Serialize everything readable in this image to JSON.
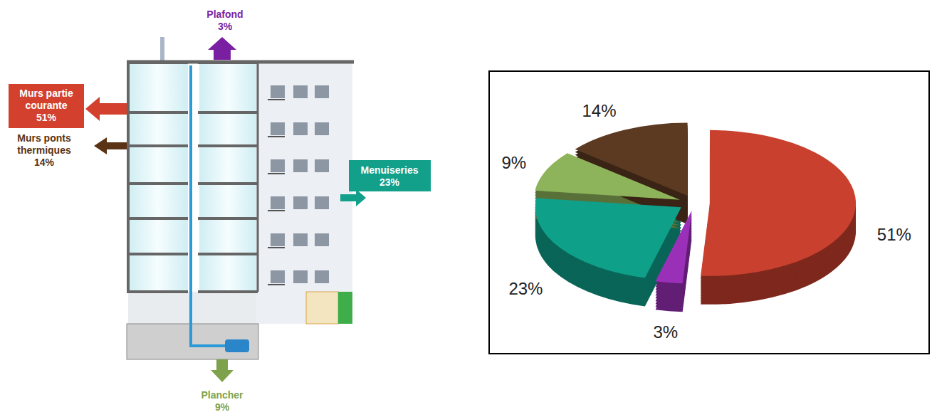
{
  "chart_data": {
    "type": "pie",
    "values": [
      51,
      3,
      23,
      9,
      14
    ],
    "value_labels": [
      "51%",
      "3%",
      "23%",
      "9%",
      "14%"
    ],
    "colors": [
      "#c9402e",
      "#9b30b8",
      "#0fa08a",
      "#8db45a",
      "#5c3a22"
    ],
    "data_labels": true
  },
  "diagram": {
    "labels": [
      {
        "lines": [
          "Plafond",
          "3%"
        ],
        "color": "#7b1fa2",
        "boxed": false
      },
      {
        "lines": [
          "Murs partie",
          "courante",
          "51%"
        ],
        "color": "#d3412e",
        "boxed": true
      },
      {
        "lines": [
          "Murs ponts",
          "thermiques",
          "14%"
        ],
        "color": "#5a3214",
        "boxed": false
      },
      {
        "lines": [
          "Menuiseries",
          "23%"
        ],
        "color": "#12a08b",
        "boxed": true
      },
      {
        "lines": [
          "Plancher",
          "9%"
        ],
        "color": "#7ea24c",
        "boxed": false
      }
    ]
  }
}
